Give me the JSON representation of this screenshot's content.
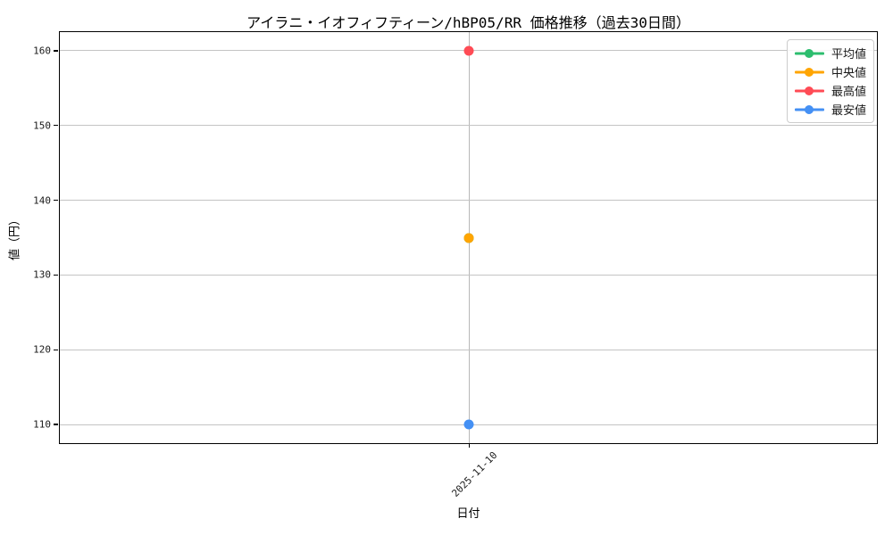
{
  "chart_data": {
    "type": "line",
    "title": "アイラニ・イオフィフティーン/hBP05/RR 価格推移（過去30日間）",
    "xlabel": "日付",
    "ylabel": "値（円）",
    "x": [
      "2025-11-10"
    ],
    "series": [
      {
        "key": "mean",
        "name": "平均値",
        "color": "#2cbd6e",
        "values": [
          135
        ]
      },
      {
        "key": "median",
        "name": "中央値",
        "color": "#ffa502",
        "values": [
          135
        ]
      },
      {
        "key": "max",
        "name": "最高値",
        "color": "#ff4b55",
        "values": [
          160
        ]
      },
      {
        "key": "min",
        "name": "最安値",
        "color": "#4490f4",
        "values": [
          110
        ]
      }
    ],
    "yticks": [
      110,
      120,
      130,
      140,
      150,
      160
    ],
    "ylim": [
      107.5,
      162.5
    ],
    "grid": true,
    "legend_position": "upper right"
  },
  "colors": {
    "background": "#ffffff",
    "grid": "#c4c4c4",
    "spine": "#000000",
    "text": "#1a1a1a"
  }
}
